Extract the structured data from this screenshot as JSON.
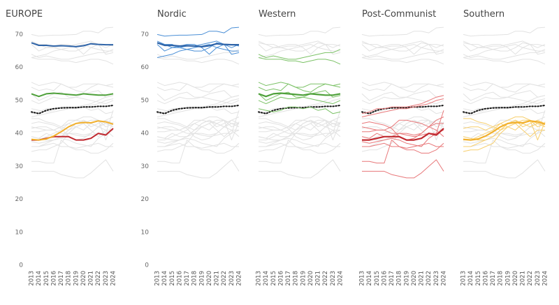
{
  "chart_data": {
    "type": "line",
    "x": [
      2013,
      2014,
      2015,
      2016,
      2017,
      2018,
      2019,
      2020,
      2021,
      2022,
      2023,
      2024
    ],
    "ylim": [
      0,
      72
    ],
    "yticks": [
      0,
      10,
      20,
      30,
      40,
      50,
      60,
      70
    ],
    "europe": {
      "title": "EUROPE",
      "color": "#111111",
      "values": [
        46.5,
        46,
        47,
        47.5,
        47.7,
        47.8,
        47.8,
        48,
        48,
        48.2,
        48.2,
        48.5
      ]
    },
    "groups": [
      {
        "title": "Nordic",
        "color": "#2f64a8",
        "series_color": "#4a8fd6",
        "average": [
          67.5,
          66.7,
          66.7,
          66.5,
          66.6,
          66.5,
          66.3,
          66.6,
          67.2,
          67,
          66.9,
          66.9
        ],
        "series": [
          {
            "values": [
              70,
              69.5,
              69.7,
              69.8,
              69.8,
              69.9,
              70,
              71,
              71,
              70.5,
              72,
              72.2
            ]
          },
          {
            "values": [
              68,
              67,
              67,
              66,
              66.5,
              66.5,
              67,
              67.5,
              68,
              67,
              67,
              66.5
            ]
          },
          {
            "values": [
              67,
              65,
              66,
              66.5,
              67,
              67,
              66,
              64,
              66,
              67,
              66,
              67
            ]
          },
          {
            "values": [
              63,
              63.5,
              64,
              65,
              65.5,
              66,
              66.5,
              67,
              66,
              65.5,
              65,
              65
            ]
          },
          {
            "values": [
              67.5,
              67,
              66,
              66,
              65.5,
              65,
              65,
              66,
              67.5,
              67,
              64,
              64.5
            ]
          }
        ]
      },
      {
        "title": "Western",
        "color": "#4ea03a",
        "series_color": "#7cc267",
        "average": [
          52,
          51.2,
          52,
          52.2,
          52,
          51.8,
          51.6,
          52,
          51.8,
          51.6,
          51.6,
          52
        ],
        "series": [
          {
            "values": [
              64,
              63,
              63.5,
              63,
              62.5,
              62.5,
              63,
              63.5,
              64,
              64.5,
              64.5,
              65.5
            ]
          },
          {
            "values": [
              63,
              62.5,
              62.5,
              62.5,
              62,
              62,
              61.5,
              62,
              62.5,
              62.5,
              62,
              61
            ]
          },
          {
            "values": [
              55.5,
              54.5,
              55,
              55.5,
              55,
              54,
              54,
              55,
              55,
              55,
              54.5,
              55
            ]
          },
          {
            "values": [
              54,
              53,
              53.5,
              53,
              55,
              54,
              53,
              52.5,
              54,
              55,
              54.5,
              54
            ]
          },
          {
            "values": [
              52,
              50,
              51,
              52,
              52.5,
              51,
              51,
              52,
              52.5,
              53,
              51,
              51.5
            ]
          },
          {
            "values": [
              50,
              49,
              50,
              51,
              50.5,
              50.5,
              51,
              50.5,
              50,
              49.5,
              49,
              50
            ]
          },
          {
            "values": [
              47.5,
              47,
              46.5,
              47,
              48,
              48,
              47.5,
              48,
              47,
              47.5,
              46,
              46.5
            ]
          }
        ]
      },
      {
        "title": "Post-Communist",
        "color": "#c0282f",
        "series_color": "#e8787a",
        "average": [
          38,
          38,
          38.5,
          39,
          39,
          39,
          38,
          38,
          38.5,
          40,
          39.5,
          41.5
        ],
        "series": [
          {
            "values": [
              46,
              46.5,
              47.5,
              47.5,
              48,
              48,
              48,
              48.5,
              49,
              50,
              51,
              51.5
            ]
          },
          {
            "values": [
              45,
              45.5,
              46,
              46.5,
              47,
              47.5,
              47.5,
              48,
              48.5,
              49,
              50,
              50.5
            ]
          },
          {
            "values": [
              42,
              41.5,
              41,
              41,
              42,
              44,
              44,
              43.5,
              43,
              42,
              43,
              43
            ]
          },
          {
            "values": [
              40.5,
              40.5,
              41,
              41,
              40,
              40,
              39.5,
              39,
              39.5,
              40,
              40,
              47
            ]
          },
          {
            "values": [
              39,
              38.5,
              40,
              39,
              39,
              40,
              40,
              39.5,
              40,
              42,
              41,
              39
            ]
          },
          {
            "values": [
              37.5,
              37,
              37.5,
              38,
              38.5,
              38,
              37,
              36.5,
              36,
              38.5,
              40,
              41
            ]
          },
          {
            "values": [
              36,
              36,
              36.5,
              37,
              36,
              36,
              35.5,
              36,
              36.5,
              37,
              36,
              36
            ]
          },
          {
            "values": [
              31.5,
              31.5,
              31,
              31,
              38,
              36,
              35,
              35,
              34,
              34,
              35,
              37
            ]
          },
          {
            "values": [
              28.5,
              28.5,
              28.5,
              28.5,
              27.5,
              27,
              26.5,
              26.5,
              28,
              30,
              32,
              28.5
            ]
          },
          {
            "values": [
              43,
              43.5,
              43,
              42.5,
              41.5,
              39,
              38,
              38.5,
              40,
              42,
              44,
              45
            ]
          }
        ]
      },
      {
        "title": "Southern",
        "color": "#f2b02c",
        "series_color": "#f7cf6e",
        "average": [
          38.2,
          38,
          38.3,
          39.2,
          40.5,
          42,
          43,
          43.3,
          43.2,
          43.8,
          43.5,
          42.8
        ],
        "series": [
          {
            "values": [
              44.5,
              44.5,
              43.5,
              43,
              42,
              41,
              42,
              43,
              44,
              44,
              42,
              43
            ]
          },
          {
            "values": [
              41.5,
              42,
              42,
              41,
              42,
              43,
              44,
              45,
              45,
              44,
              43,
              42
            ]
          },
          {
            "values": [
              38,
              38,
              39,
              40,
              41,
              43,
              42,
              41,
              43,
              44,
              38,
              43.5
            ]
          },
          {
            "values": [
              36,
              36,
              37,
              38,
              39,
              41,
              43,
              44,
              43,
              42,
              43,
              42
            ]
          },
          {
            "values": [
              34.5,
              35,
              35,
              36,
              37,
              40,
              42,
              43,
              41,
              39,
              41,
              41
            ]
          },
          {
            "values": [
              39,
              38.5,
              38,
              38,
              39,
              41,
              43,
              44,
              42,
              43,
              44,
              43
            ]
          }
        ]
      }
    ]
  }
}
